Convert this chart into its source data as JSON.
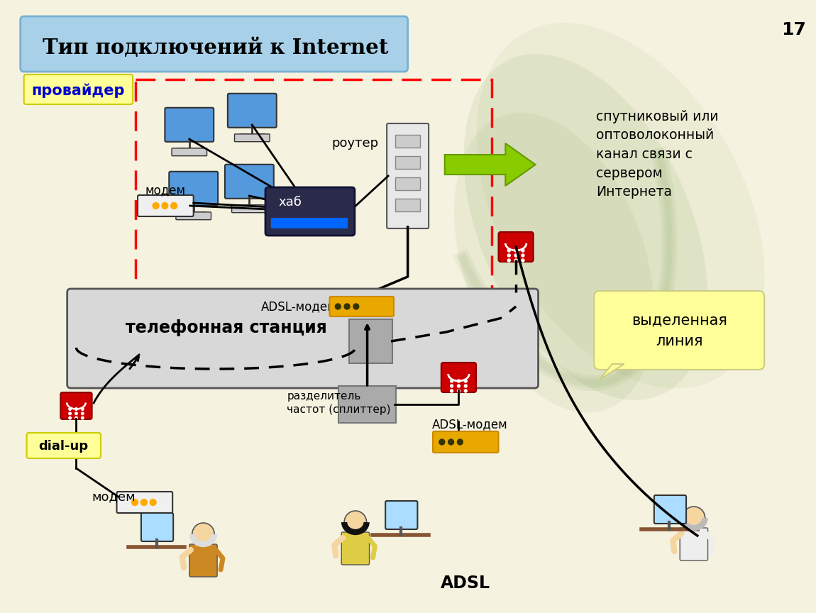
{
  "bg_color": "#f5f2e0",
  "title": "Тип подключений к Internet",
  "title_box_color": "#a8d0e8",
  "title_box_edge": "#7ab0d0",
  "page_number": "17",
  "provider_label": "провайдер",
  "provider_label_color": "#0000cc",
  "provider_label_bg": "#ffff99",
  "modem_label_top": "модем",
  "router_label": "роутер",
  "hub_label": "хаб",
  "satellite_text": "спутниковый или\nоптоволоконный\nканал связи с\nсервером\nИнтернета",
  "station_box_color": "#d8d8d8",
  "station_label": "телефонная станция",
  "adsl_modem_label_top": "ADSL-модем",
  "adsl_modem_label_bot": "ADSL-модем",
  "splitter_label": "разделитель\nчастот (сплиттер)",
  "dialup_label": "dial-up",
  "modem_label_bot": "модем",
  "adsl_label": "ADSL",
  "dedicated_label": "выделенная\nлиния",
  "dedicated_bg": "#ffff99",
  "green_arrow_color": "#88cc00",
  "red_color": "#cc0000",
  "dark_color": "#333333",
  "adsl_modem_color": "#e8a800"
}
